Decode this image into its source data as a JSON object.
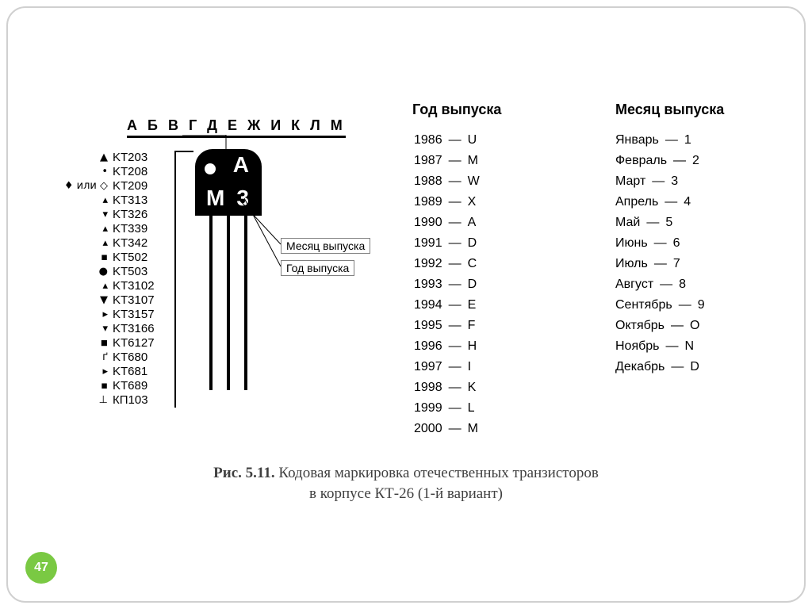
{
  "letter_row": "А Б В Г Д Е Ж И К Л М",
  "transistor": {
    "marks": {
      "top_right": "А",
      "bottom_left": "М",
      "bottom_right": "3"
    }
  },
  "callouts": {
    "month": "Месяц выпуска",
    "year": "Год выпуска"
  },
  "parts": [
    {
      "sym": "▲",
      "name": "KT203"
    },
    {
      "sym": "•",
      "name": "KT208"
    },
    {
      "sym": "♦ или ◇",
      "name": "KT209"
    },
    {
      "sym": "▴",
      "name": "KT313"
    },
    {
      "sym": "▾",
      "name": "KT326"
    },
    {
      "sym": "▴",
      "name": "KT339"
    },
    {
      "sym": "▴",
      "name": "KT342"
    },
    {
      "sym": "▪",
      "name": "KT502"
    },
    {
      "sym": "●",
      "name": "KT503"
    },
    {
      "sym": "▴",
      "name": "KT3102"
    },
    {
      "sym": "▼",
      "name": "KT3107"
    },
    {
      "sym": "▸",
      "name": "KT3157"
    },
    {
      "sym": "▾",
      "name": "KT3166"
    },
    {
      "sym": "◾",
      "name": "KT6127"
    },
    {
      "sym": "ґ",
      "name": "KT680"
    },
    {
      "sym": "▸",
      "name": "KT681"
    },
    {
      "sym": "▪",
      "name": "KT689"
    },
    {
      "sym": "⊥",
      "name": "КП103"
    }
  ],
  "year_header": "Год выпуска",
  "years": [
    {
      "y": "1986",
      "c": "U"
    },
    {
      "y": "1987",
      "c": "M"
    },
    {
      "y": "1988",
      "c": "W"
    },
    {
      "y": "1989",
      "c": "X"
    },
    {
      "y": "1990",
      "c": "A"
    },
    {
      "y": "1991",
      "c": "D"
    },
    {
      "y": "1992",
      "c": "C"
    },
    {
      "y": "1993",
      "c": "D"
    },
    {
      "y": "1994",
      "c": "E"
    },
    {
      "y": "1995",
      "c": "F"
    },
    {
      "y": "1996",
      "c": "H"
    },
    {
      "y": "1997",
      "c": "I"
    },
    {
      "y": "1998",
      "c": "K"
    },
    {
      "y": "1999",
      "c": "L"
    },
    {
      "y": "2000",
      "c": "M"
    }
  ],
  "month_header": "Месяц выпуска",
  "months": [
    {
      "m": "Январь",
      "c": "1"
    },
    {
      "m": "Февраль",
      "c": "2"
    },
    {
      "m": "Март",
      "c": "3"
    },
    {
      "m": "Апрель",
      "c": "4"
    },
    {
      "m": "Май",
      "c": "5"
    },
    {
      "m": "Июнь",
      "c": "6"
    },
    {
      "m": "Июль",
      "c": "7"
    },
    {
      "m": "Август",
      "c": "8"
    },
    {
      "m": "Сентябрь",
      "c": "9"
    },
    {
      "m": "Октябрь",
      "c": "O"
    },
    {
      "m": "Ноябрь",
      "c": "N"
    },
    {
      "m": "Декабрь",
      "c": "D"
    }
  ],
  "caption_prefix": "Рис. 5.11.",
  "caption_line1": " Кодовая маркировка отечественных транзисторов",
  "caption_line2": "в корпусе КТ-26 (1-й вариант)",
  "badge": "47",
  "colors": {
    "frame": "#d0d0d0",
    "badge_bg": "#7ac943",
    "text": "#000000",
    "caption": "#404040"
  }
}
